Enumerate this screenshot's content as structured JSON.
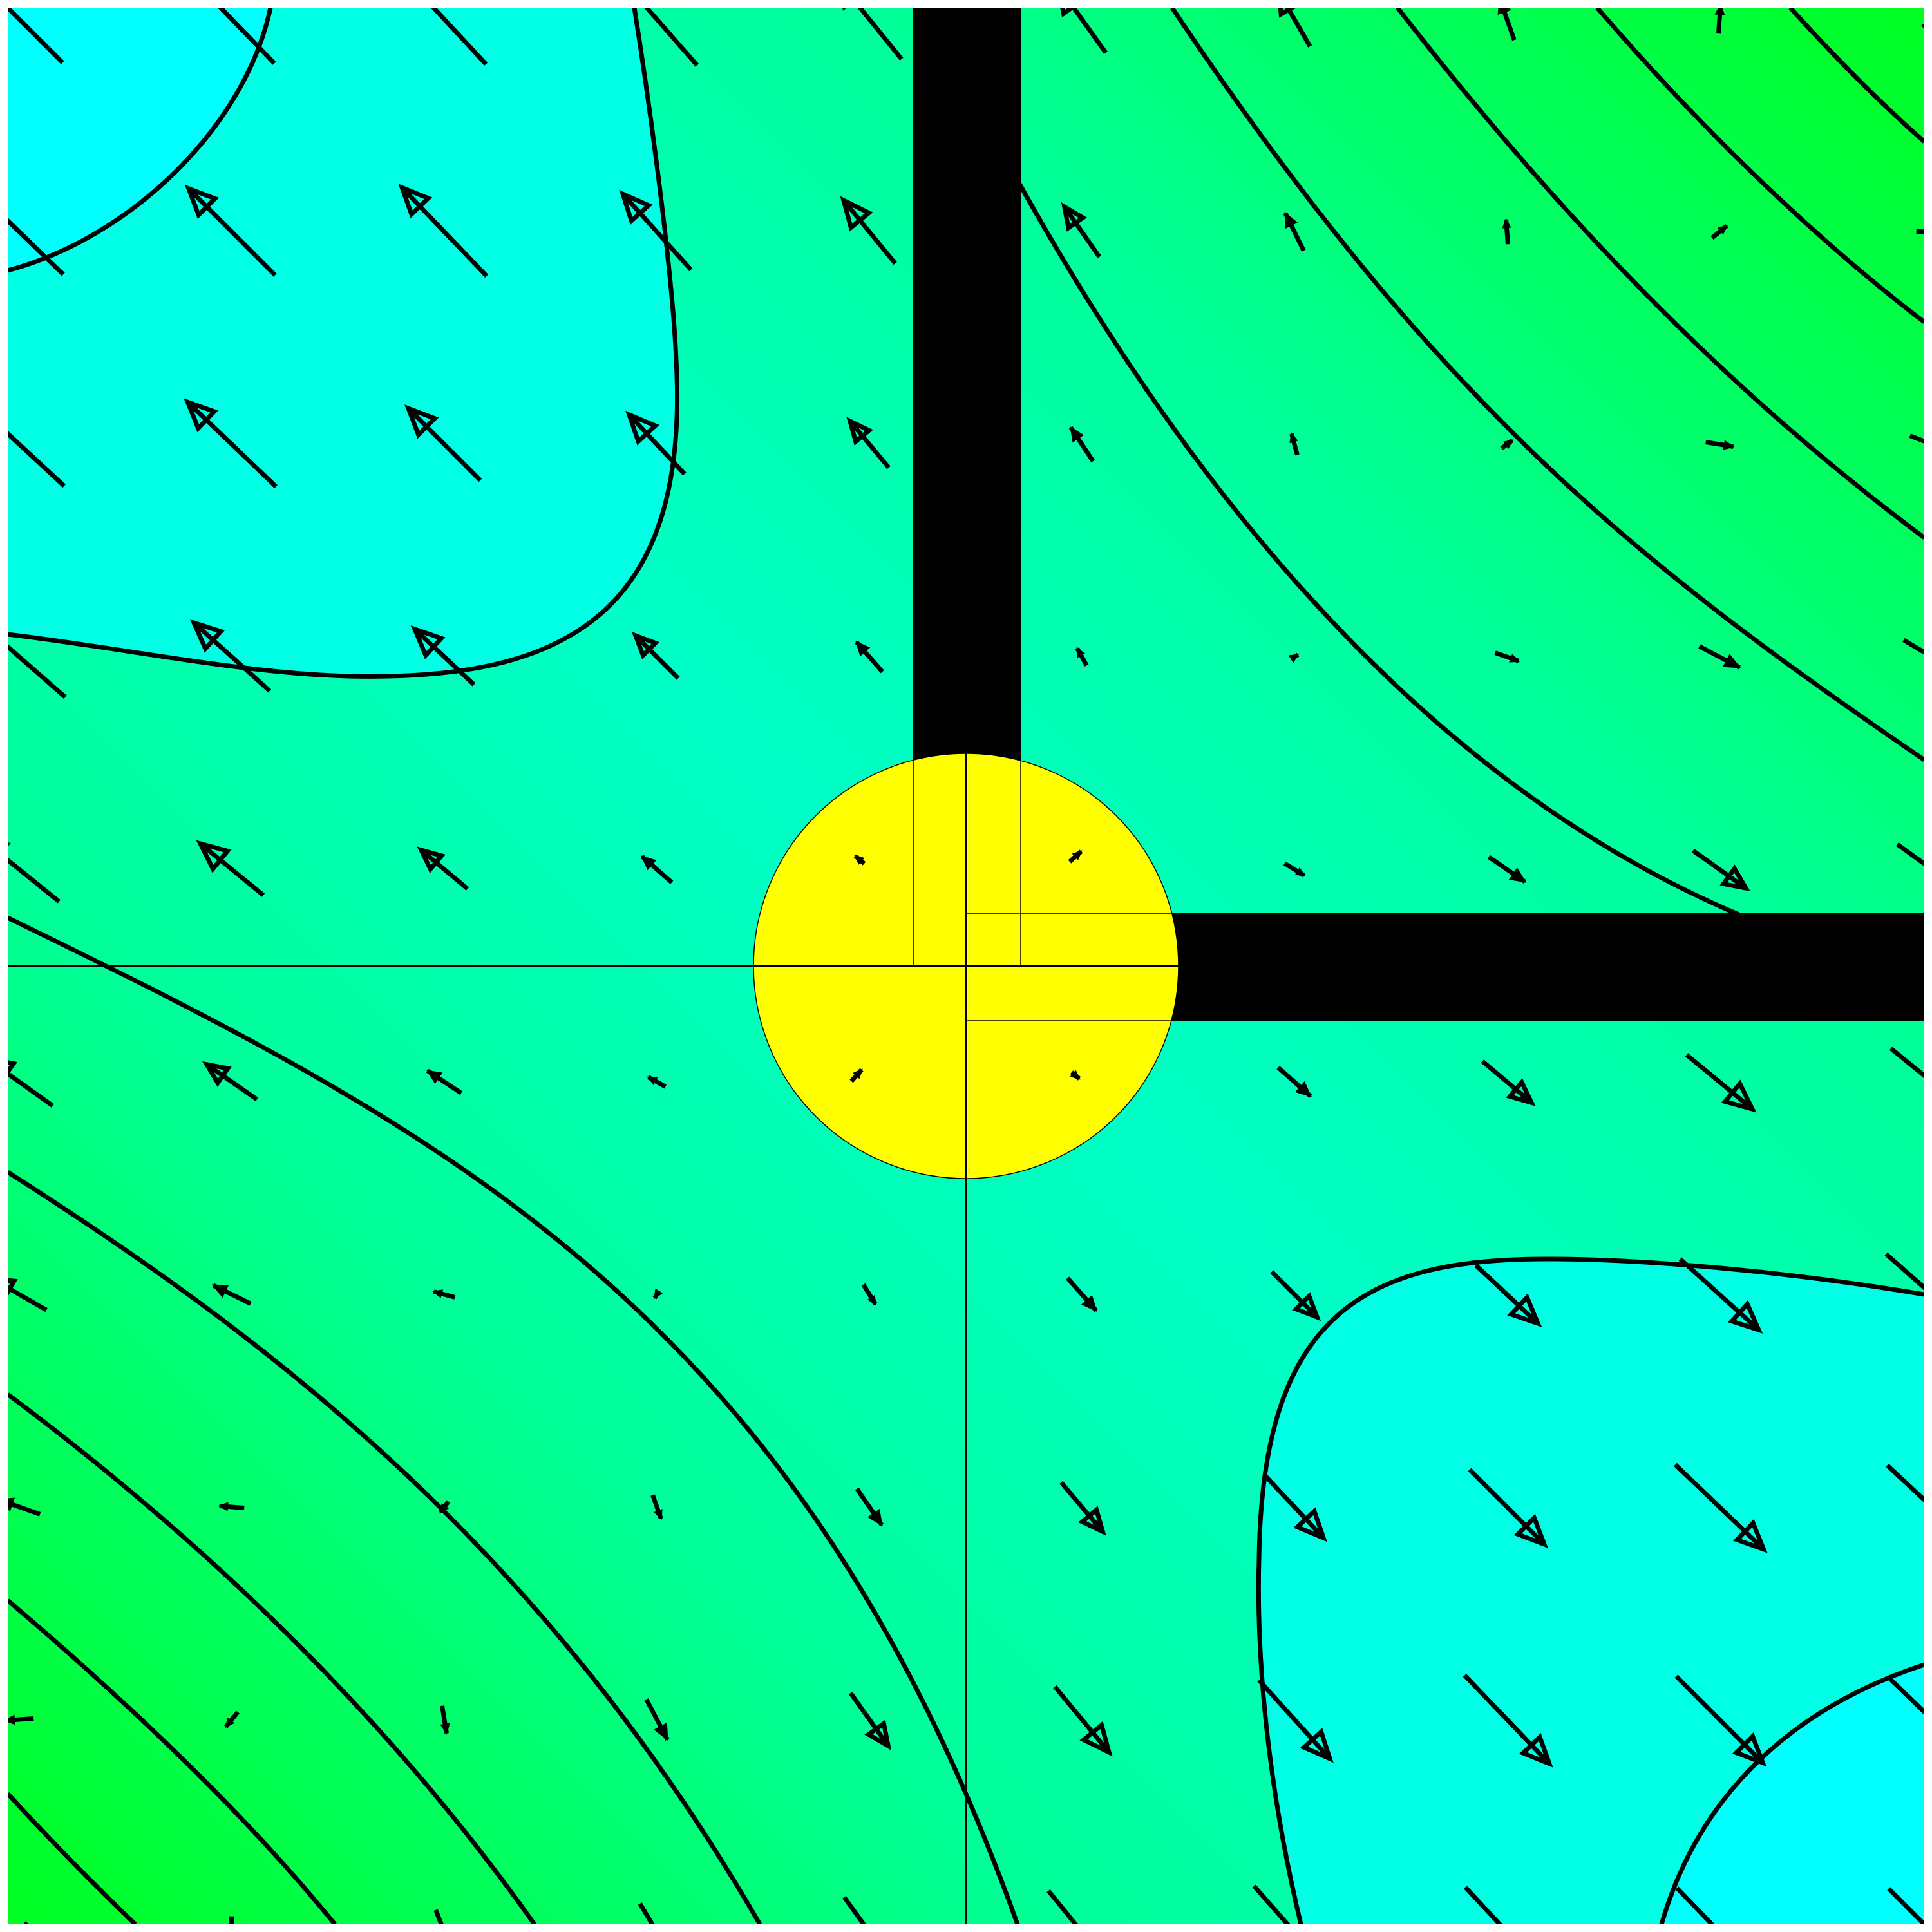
{
  "figure": {
    "kind": "vector-field-contour-plot",
    "colors": {
      "frame": "#ffffff",
      "field_low": "#00ffff",
      "field_mid": "#00ffc8",
      "field_high": "#00ff20",
      "obstacle": "#000000",
      "source_disk": "#ffff00",
      "contour": "#000000",
      "arrow": "#000000"
    }
  }
}
